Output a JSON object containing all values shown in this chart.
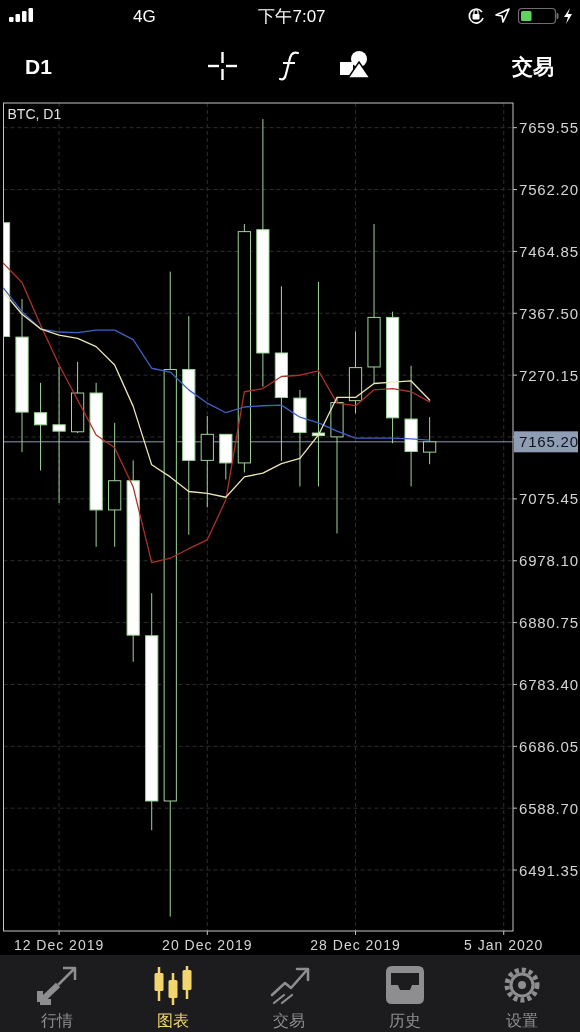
{
  "chart_data": {
    "type": "candlestick",
    "title": "BTC, D1",
    "x": [
      "2019-12-09",
      "2019-12-10",
      "2019-12-11",
      "2019-12-12",
      "2019-12-13",
      "2019-12-14",
      "2019-12-15",
      "2019-12-16",
      "2019-12-17",
      "2019-12-18",
      "2019-12-19",
      "2019-12-20",
      "2019-12-21",
      "2019-12-22",
      "2019-12-23",
      "2019-12-24",
      "2019-12-25",
      "2019-12-26",
      "2019-12-27",
      "2019-12-28",
      "2019-12-29",
      "2019-12-30",
      "2019-12-31",
      "2020-01-01"
    ],
    "ohlc": [
      [
        7510,
        7510,
        7331,
        7331
      ],
      [
        7330,
        7390,
        7149,
        7212
      ],
      [
        7211,
        7258,
        7120,
        7192
      ],
      [
        7192,
        7283,
        7069,
        7182
      ],
      [
        7181,
        7291,
        7179,
        7242
      ],
      [
        7242,
        7258,
        7000,
        7058
      ],
      [
        7058,
        7195,
        7000,
        7104
      ],
      [
        7104,
        7136,
        6819,
        6861
      ],
      [
        6860,
        6927,
        6554,
        6600
      ],
      [
        6600,
        7433,
        6418,
        7279
      ],
      [
        7279,
        7363,
        7019,
        7136
      ],
      [
        7136,
        7206,
        7062,
        7177
      ],
      [
        7177,
        7177,
        7106,
        7132
      ],
      [
        7132,
        7508,
        7117,
        7496
      ],
      [
        7499,
        7673,
        7252,
        7305
      ],
      [
        7305,
        7410,
        7135,
        7235
      ],
      [
        7234,
        7247,
        7095,
        7180
      ],
      [
        7179,
        7417,
        7095,
        7175
      ],
      [
        7173,
        7236,
        7021,
        7227
      ],
      [
        7230,
        7339,
        7210,
        7282
      ],
      [
        7283,
        7508,
        7257,
        7361
      ],
      [
        7361,
        7370,
        7163,
        7203
      ],
      [
        7201,
        7285,
        7095,
        7150
      ],
      [
        7149,
        7204,
        7130,
        7165.2
      ]
    ],
    "color": "#9fd49a",
    "colors": [
      "#ffffff",
      "#ffffff",
      "#ffffff",
      "#ffffff",
      "#000000",
      "#ffffff",
      "#000000",
      "#ffffff",
      "#ffffff",
      "#000000",
      "#ffffff",
      "#000000",
      "#ffffff",
      "#000000",
      "#ffffff",
      "#ffffff",
      "#ffffff",
      "#ffffff",
      "#000000",
      "#000000",
      "#000000",
      "#ffffff",
      "#ffffff",
      "#000000"
    ],
    "series": [
      {
        "type": "line",
        "color": "#b0302a",
        "values": [
          7446,
          7416,
          7349,
          7286,
          7231,
          7176,
          7156,
          7094,
          6975,
          6982,
          6997,
          7011,
          7074,
          7244,
          7249,
          7268,
          7270,
          7277,
          7226,
          7222,
          7247,
          7249,
          7244,
          7228
        ]
      },
      {
        "type": "line",
        "color": "#4062c4",
        "values": [
          7407,
          7370,
          7343,
          7338,
          7337,
          7341,
          7341,
          7326,
          7281,
          7275,
          7247,
          7226,
          7211,
          7220,
          7222,
          7223,
          7204,
          7195,
          7182,
          7171,
          7171,
          7171,
          7170,
          7168
        ]
      },
      {
        "type": "line",
        "color": "#ece7b4",
        "values": [
          7401,
          7366,
          7343,
          7333,
          7328,
          7315,
          7286,
          7221,
          7129,
          7110,
          7087,
          7084,
          7078,
          7110,
          7116,
          7131,
          7139,
          7176,
          7235,
          7235,
          7257,
          7259,
          7261,
          7231
        ]
      }
    ],
    "xlim": [
      "2019-12-09",
      "2020-01-05T12:00"
    ],
    "xticks": [
      {
        "value": "2019-12-12",
        "label": "12 Dec 2019"
      },
      {
        "value": "2019-12-20",
        "label": "20 Dec 2019"
      },
      {
        "value": "2019-12-28",
        "label": "28 Dec 2019"
      },
      {
        "value": "2020-01-05",
        "label": "5 Jan 2020"
      }
    ],
    "ylim": [
      6395.4,
      7698.4
    ],
    "yticks": [
      7659.55,
      {
        "value": 7562.2,
        "label": "7562.20"
      },
      7464.85,
      {
        "value": 7367.5,
        "label": "7367.50"
      },
      7270.15,
      {
        "value": 7172.8,
        "label": null
      },
      7075.45,
      {
        "value": 6978.1,
        "label": "6978.10"
      },
      6880.75,
      {
        "value": 6783.4,
        "label": "6783.40"
      },
      6686.05,
      {
        "value": 6588.7,
        "label": "6588.70"
      },
      6491.35
    ],
    "grid": true,
    "ref_lines": [
      {
        "axis": "y",
        "value": 7165.2,
        "label": "7165.20",
        "color": "#8e9cb4"
      }
    ],
    "annotations": [
      "4G",
      "下午7:07",
      "D1",
      "交易",
      "行情",
      "图表",
      "交易",
      "历史",
      "设置"
    ]
  }
}
